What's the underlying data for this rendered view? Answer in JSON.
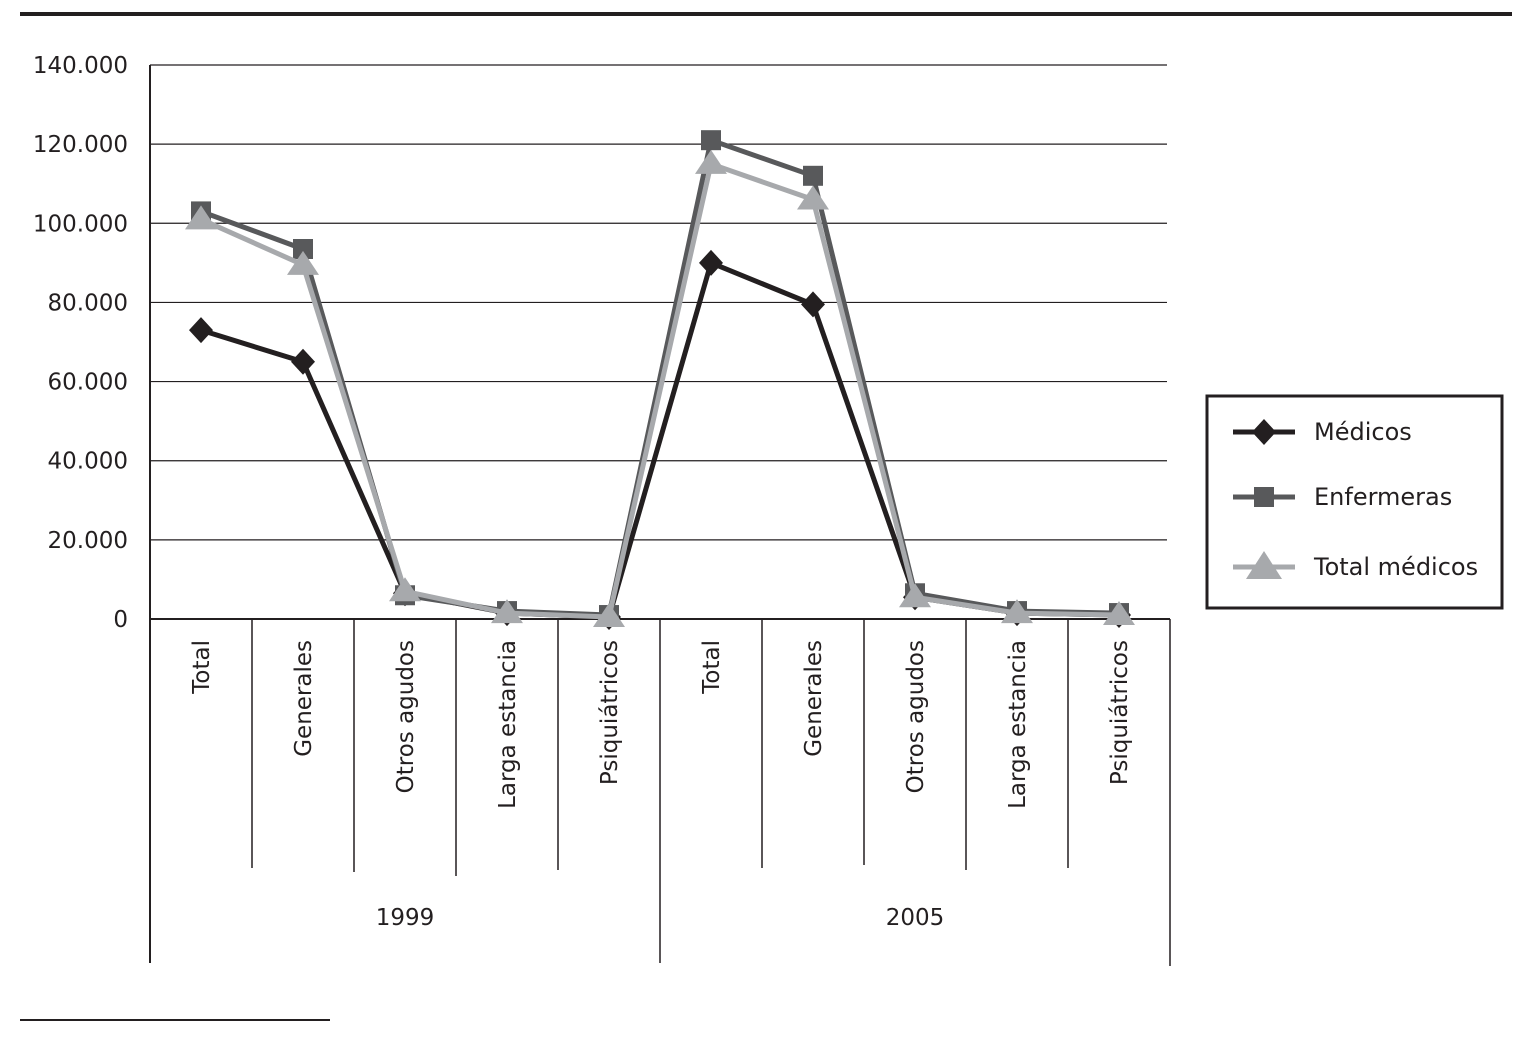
{
  "chart_data": {
    "type": "line",
    "title": "",
    "xlabel": "",
    "ylabel": "",
    "ylim": [
      0,
      140000
    ],
    "y_ticks": [
      0,
      20000,
      40000,
      60000,
      80000,
      100000,
      120000,
      140000
    ],
    "y_tick_labels": [
      "0",
      "20.000",
      "40.000",
      "60.000",
      "80.000",
      "100.000",
      "120.000",
      "140.000"
    ],
    "grid": true,
    "legend_position": "right",
    "groups": [
      {
        "label": "1999",
        "categories": [
          "Total",
          "Generales",
          "Otros agudos",
          "Larga estancia",
          "Psiquiátricos"
        ]
      },
      {
        "label": "2005",
        "categories": [
          "Total",
          "Generales",
          "Otros agudos",
          "Larga estancia",
          "Psiquiátricos"
        ]
      }
    ],
    "categories": [
      "Total",
      "Generales",
      "Otros agudos",
      "Larga estancia",
      "Psiquiátricos",
      "Total",
      "Generales",
      "Otros agudos",
      "Larga estancia",
      "Psiquiátricos"
    ],
    "series": [
      {
        "name": "Médicos",
        "marker": "diamond",
        "color": "#231f20",
        "values": [
          73000,
          65000,
          6500,
          1500,
          500,
          90000,
          79500,
          5500,
          1500,
          1000
        ]
      },
      {
        "name": "Enfermeras",
        "marker": "square",
        "color": "#58595b",
        "values": [
          103000,
          93500,
          6000,
          2000,
          1000,
          121000,
          112000,
          6500,
          2000,
          1500
        ]
      },
      {
        "name": "Total médicos",
        "marker": "triangle",
        "color": "#a7a9ac",
        "values": [
          101000,
          89500,
          7000,
          1500,
          500,
          115000,
          106000,
          5500,
          1500,
          1000
        ]
      }
    ]
  }
}
